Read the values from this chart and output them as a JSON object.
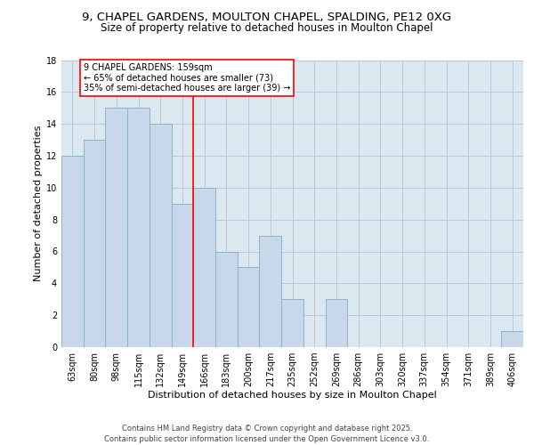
{
  "title1": "9, CHAPEL GARDENS, MOULTON CHAPEL, SPALDING, PE12 0XG",
  "title2": "Size of property relative to detached houses in Moulton Chapel",
  "xlabel": "Distribution of detached houses by size in Moulton Chapel",
  "ylabel": "Number of detached properties",
  "categories": [
    "63sqm",
    "80sqm",
    "98sqm",
    "115sqm",
    "132sqm",
    "149sqm",
    "166sqm",
    "183sqm",
    "200sqm",
    "217sqm",
    "235sqm",
    "252sqm",
    "269sqm",
    "286sqm",
    "303sqm",
    "320sqm",
    "337sqm",
    "354sqm",
    "371sqm",
    "389sqm",
    "406sqm"
  ],
  "values": [
    12,
    13,
    15,
    15,
    14,
    9,
    10,
    6,
    5,
    7,
    3,
    0,
    3,
    0,
    0,
    0,
    0,
    0,
    0,
    0,
    1
  ],
  "bar_color": "#c8d8ea",
  "bar_edge_color": "#8ab4cc",
  "background_color": "#dce8f0",
  "grid_color": "#b8c8d8",
  "vline_x_index": 5.5,
  "vline_color": "red",
  "annotation_text": "9 CHAPEL GARDENS: 159sqm\n← 65% of detached houses are smaller (73)\n35% of semi-detached houses are larger (39) →",
  "annotation_box_color": "white",
  "annotation_box_edge": "red",
  "ylim": [
    0,
    18
  ],
  "yticks": [
    0,
    2,
    4,
    6,
    8,
    10,
    12,
    14,
    16,
    18
  ],
  "footer": "Contains HM Land Registry data © Crown copyright and database right 2025.\nContains public sector information licensed under the Open Government Licence v3.0.",
  "title_fontsize": 9.5,
  "subtitle_fontsize": 8.5,
  "axis_label_fontsize": 8,
  "tick_fontsize": 7,
  "footer_fontsize": 6,
  "annotation_fontsize": 7
}
